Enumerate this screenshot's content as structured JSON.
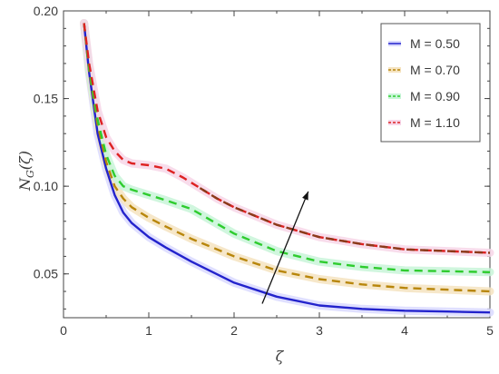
{
  "chart_data": {
    "type": "line",
    "xlabel": "ζ",
    "ylabel_main": "N",
    "ylabel_sub": "G",
    "ylabel_arg": "(ζ)",
    "xlim": [
      0,
      5
    ],
    "ylim": [
      0.025,
      0.2
    ],
    "xticks": [
      0,
      1,
      2,
      3,
      4,
      5
    ],
    "yticks": [
      0.05,
      0.1,
      0.15,
      0.2
    ],
    "ytick_labels": [
      "0.05",
      "0.10",
      "0.15",
      "0.20"
    ],
    "grid": false,
    "legend_position": "top-right",
    "series": [
      {
        "name": "M = 0.50",
        "color": "#2323cc",
        "dash": "solid",
        "shadow_color": "#d9d9ff",
        "x": [
          0.24,
          0.3,
          0.4,
          0.5,
          0.6,
          0.7,
          0.8,
          1.0,
          1.2,
          1.5,
          2.0,
          2.5,
          3.0,
          3.5,
          4.0,
          4.5,
          5.0
        ],
        "y": [
          0.193,
          0.165,
          0.13,
          0.11,
          0.095,
          0.085,
          0.079,
          0.071,
          0.065,
          0.057,
          0.045,
          0.037,
          0.032,
          0.03,
          0.029,
          0.0285,
          0.028
        ]
      },
      {
        "name": "M = 0.70",
        "color": "#b8860b",
        "dash": "dashed",
        "shadow_color": "#f5e3c0",
        "x": [
          0.24,
          0.3,
          0.4,
          0.5,
          0.6,
          0.7,
          0.8,
          1.0,
          1.2,
          1.5,
          2.0,
          2.5,
          3.0,
          3.5,
          4.0,
          4.5,
          5.0
        ],
        "y": [
          0.193,
          0.166,
          0.135,
          0.114,
          0.1,
          0.093,
          0.088,
          0.082,
          0.077,
          0.07,
          0.06,
          0.052,
          0.047,
          0.044,
          0.042,
          0.041,
          0.04
        ]
      },
      {
        "name": "M = 0.90",
        "color": "#2ecc2e",
        "dash": "dashed",
        "shadow_color": "#c8f5d8",
        "x": [
          0.24,
          0.3,
          0.4,
          0.5,
          0.6,
          0.7,
          0.8,
          1.0,
          1.2,
          1.5,
          2.0,
          2.5,
          3.0,
          3.5,
          4.0,
          4.5,
          5.0
        ],
        "y": [
          0.193,
          0.167,
          0.138,
          0.118,
          0.106,
          0.1,
          0.098,
          0.095,
          0.092,
          0.087,
          0.073,
          0.063,
          0.057,
          0.054,
          0.052,
          0.0515,
          0.051
        ]
      },
      {
        "name": "M = 1.10",
        "color": "#dd2222",
        "dash": "dashed",
        "second_color": "#8b3a1a",
        "shadow_color": "#f7d6e8",
        "x": [
          0.24,
          0.3,
          0.4,
          0.5,
          0.6,
          0.7,
          0.8,
          1.0,
          1.2,
          1.4,
          1.6,
          1.8,
          2.0,
          2.5,
          3.0,
          3.5,
          4.0,
          4.5,
          5.0
        ],
        "y": [
          0.193,
          0.17,
          0.143,
          0.128,
          0.12,
          0.115,
          0.113,
          0.112,
          0.11,
          0.105,
          0.099,
          0.093,
          0.088,
          0.078,
          0.071,
          0.067,
          0.064,
          0.063,
          0.062
        ]
      }
    ],
    "arrow": {
      "x_start": 2.33,
      "y_start": 0.033,
      "x_end": 2.87,
      "y_end": 0.097
    }
  }
}
